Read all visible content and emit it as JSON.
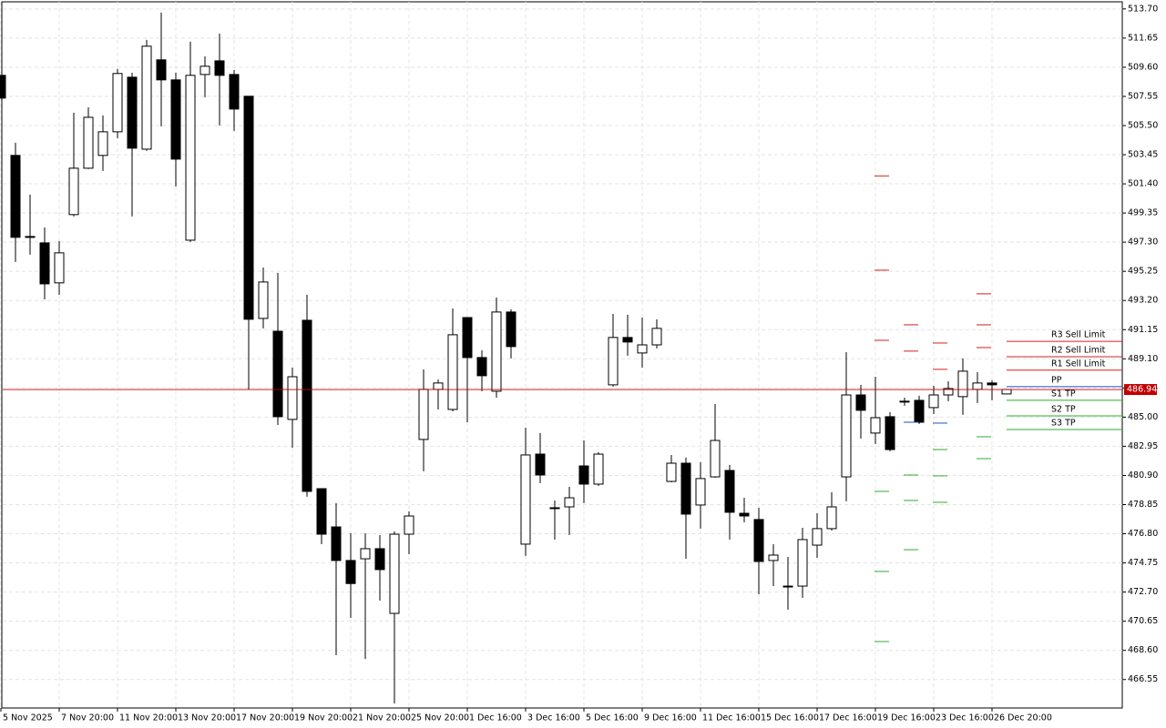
{
  "chart_data": {
    "type": "candlestick",
    "categories": [
      "5 Nov 2025",
      null,
      null,
      null,
      "7 Nov 20:00",
      null,
      null,
      null,
      "11 Nov 20:00",
      null,
      null,
      null,
      "13 Nov 20:00",
      null,
      null,
      null,
      "17 Nov 20:00",
      null,
      null,
      null,
      "19 Nov 20:00",
      null,
      null,
      null,
      "21 Nov 20:00",
      null,
      null,
      null,
      "25 Nov 20:00",
      null,
      null,
      null,
      "1 Dec 16:00",
      null,
      null,
      null,
      "3 Dec 16:00",
      null,
      null,
      null,
      "5 Dec 16:00",
      null,
      null,
      null,
      "9 Dec 16:00",
      null,
      null,
      null,
      "11 Dec 16:00",
      null,
      null,
      null,
      "15 Dec 16:00",
      null,
      null,
      null,
      "17 Dec 16:00",
      null,
      null,
      null,
      "19 Dec 16:00",
      null,
      null,
      null,
      "23 Dec 16:00",
      null,
      null,
      null,
      "26 Dec 20:00",
      null
    ],
    "open": [
      509.03,
      503.4,
      497.7,
      497.25,
      494.44,
      499.24,
      502.5,
      503.4,
      505.06,
      508.9,
      503.84,
      510.12,
      508.71,
      497.44,
      509.09,
      510.05,
      509.09,
      507.56,
      491.94,
      491.04,
      484.84,
      491.81,
      479.97,
      477.28,
      474.92,
      475.04,
      475.75,
      471.2,
      476.77,
      483.43,
      486.95,
      485.54,
      492.0,
      489.19,
      486.82,
      492.39,
      476.07,
      482.4,
      478.63,
      478.69,
      481.57,
      480.29,
      487.27,
      490.6,
      489.51,
      490.08,
      480.48,
      481.76,
      478.82,
      480.8,
      481.25,
      478.24,
      477.8,
      474.92,
      473.12,
      473.12,
      476.0,
      477.16,
      480.8,
      486.56,
      483.88,
      485.03,
      486.12,
      486.18,
      485.67,
      486.56,
      486.44,
      486.95,
      487.4,
      486.63
    ],
    "high": [
      509.03,
      504.29,
      500.64,
      498.34,
      497.38,
      506.4,
      506.79,
      506.21,
      509.48,
      509.22,
      511.52,
      513.44,
      509.22,
      511.4,
      510.37,
      511.97,
      509.41,
      507.56,
      495.52,
      495.14,
      488.48,
      493.6,
      479.97,
      478.95,
      476.84,
      476.84,
      476.71,
      476.96,
      478.37,
      488.36,
      487.65,
      492.64,
      492.0,
      489.7,
      493.41,
      492.58,
      484.26,
      483.88,
      479.14,
      480.1,
      483.36,
      482.53,
      492.26,
      492.2,
      492.0,
      491.88,
      482.34,
      482.15,
      481.83,
      485.92,
      481.64,
      479.33,
      478.63,
      476.07,
      475.17,
      477.22,
      478.24,
      479.72,
      489.57,
      487.27,
      487.84,
      485.35,
      486.37,
      486.5,
      487.2,
      487.52,
      489.13,
      488.16,
      487.59,
      486.95
    ],
    "low": [
      507.43,
      495.91,
      496.42,
      493.28,
      493.6,
      499.11,
      502.44,
      502.31,
      504.61,
      499.11,
      503.72,
      505.44,
      501.22,
      497.32,
      507.49,
      505.51,
      505.12,
      486.95,
      491.24,
      484.45,
      482.85,
      479.4,
      476.07,
      468.26,
      470.88,
      468.0,
      472.1,
      464.87,
      475.36,
      481.19,
      485.54,
      485.41,
      484.64,
      486.82,
      486.37,
      489.13,
      475.24,
      480.36,
      476.39,
      476.71,
      478.95,
      480.16,
      487.14,
      489.32,
      488.48,
      489.83,
      480.42,
      475.04,
      477.16,
      480.74,
      476.39,
      477.6,
      472.55,
      473.12,
      471.46,
      472.29,
      475.11,
      477.03,
      479.08,
      483.49,
      483.11,
      482.6,
      485.8,
      484.52,
      485.22,
      486.12,
      485.16,
      485.99,
      486.18,
      486.63
    ],
    "close": [
      507.43,
      497.64,
      497.7,
      494.37,
      496.55,
      502.5,
      506.08,
      505.06,
      509.16,
      503.91,
      511.08,
      508.71,
      503.14,
      509.03,
      509.67,
      509.03,
      506.66,
      491.88,
      494.5,
      485.03,
      487.84,
      479.78,
      476.77,
      474.92,
      473.3,
      475.75,
      474.28,
      476.77,
      478.05,
      486.95,
      487.4,
      490.79,
      489.19,
      487.91,
      492.39,
      489.96,
      482.34,
      480.93,
      478.63,
      479.33,
      480.29,
      482.4,
      490.6,
      490.28,
      490.08,
      491.24,
      481.76,
      478.18,
      480.68,
      483.36,
      478.31,
      478.05,
      474.85,
      475.3,
      473.06,
      476.39,
      477.16,
      478.69,
      486.56,
      485.48,
      484.96,
      482.72,
      486.12,
      484.64,
      486.56,
      487.01,
      488.23,
      487.4,
      487.27,
      486.94
    ],
    "ylim": [
      464.55,
      514.2
    ],
    "yticks": [
      {
        "value": 513.7,
        "label": "513.70"
      },
      511.65,
      {
        "value": 509.6,
        "label": "509.60"
      },
      507.55,
      {
        "value": 505.5,
        "label": "505.50"
      },
      503.45,
      {
        "value": 501.4,
        "label": "501.40"
      },
      499.35,
      {
        "value": 497.3,
        "label": "497.30"
      },
      495.25,
      {
        "value": 493.2,
        "label": "493.20"
      },
      491.15,
      {
        "value": 489.1,
        "label": "489.10"
      },
      487.05,
      {
        "value": 485,
        "label": "485.00"
      },
      482.95,
      {
        "value": 480.9,
        "label": "480.90"
      },
      478.85,
      {
        "value": 476.8,
        "label": "476.80"
      },
      474.75,
      {
        "value": 472.7,
        "label": "472.70"
      },
      470.65,
      {
        "value": 468.6,
        "label": "468.60"
      },
      466.55
    ],
    "grid": true,
    "last_price": 486.94,
    "last_price_color": "#c00000",
    "levels": [
      {
        "name": "R3 Sell Limit",
        "value": 490.33,
        "color": "#d42020"
      },
      {
        "name": "R2 Sell Limit",
        "value": 489.25,
        "color": "#d42020"
      },
      {
        "name": "R1 Sell Limit",
        "value": 488.3,
        "color": "#d42020"
      },
      {
        "name": "PP",
        "value": 487.14,
        "color": "#2050c0"
      },
      {
        "name": "S1 TP",
        "value": 486.18,
        "color": "#33aa33"
      },
      {
        "name": "S2 TP",
        "value": 485.09,
        "color": "#33aa33"
      },
      {
        "name": "S3 TP",
        "value": 484.13,
        "color": "#33aa33"
      }
    ],
    "marks": [
      {
        "color": "#d42020",
        "points": [
          {
            "candle": 60,
            "value": 501.96
          },
          {
            "candle": 60,
            "value": 495.33
          },
          {
            "candle": 60,
            "value": 490.4
          },
          {
            "candle": 62,
            "value": 491.49
          },
          {
            "candle": 62,
            "value": 489.64
          },
          {
            "candle": 64,
            "value": 490.21
          },
          {
            "candle": 64,
            "value": 488.36
          },
          {
            "candle": 67,
            "value": 493.67
          },
          {
            "candle": 67,
            "value": 491.49
          },
          {
            "candle": 67,
            "value": 489.89
          }
        ]
      },
      {
        "color": "#33aa33",
        "points": [
          {
            "candle": 60,
            "value": 479.78
          },
          {
            "candle": 60,
            "value": 474.15
          },
          {
            "candle": 60,
            "value": 469.22
          },
          {
            "candle": 62,
            "value": 480.93
          },
          {
            "candle": 62,
            "value": 479.14
          },
          {
            "candle": 62,
            "value": 475.68
          },
          {
            "candle": 64,
            "value": 482.72
          },
          {
            "candle": 64,
            "value": 480.87
          },
          {
            "candle": 64,
            "value": 479.01
          },
          {
            "candle": 67,
            "value": 483.62
          },
          {
            "candle": 67,
            "value": 482.08
          }
        ]
      },
      {
        "color": "#2050c0",
        "points": [
          {
            "candle": 62,
            "value": 484.64
          },
          {
            "candle": 64,
            "value": 484.58
          }
        ]
      }
    ]
  }
}
